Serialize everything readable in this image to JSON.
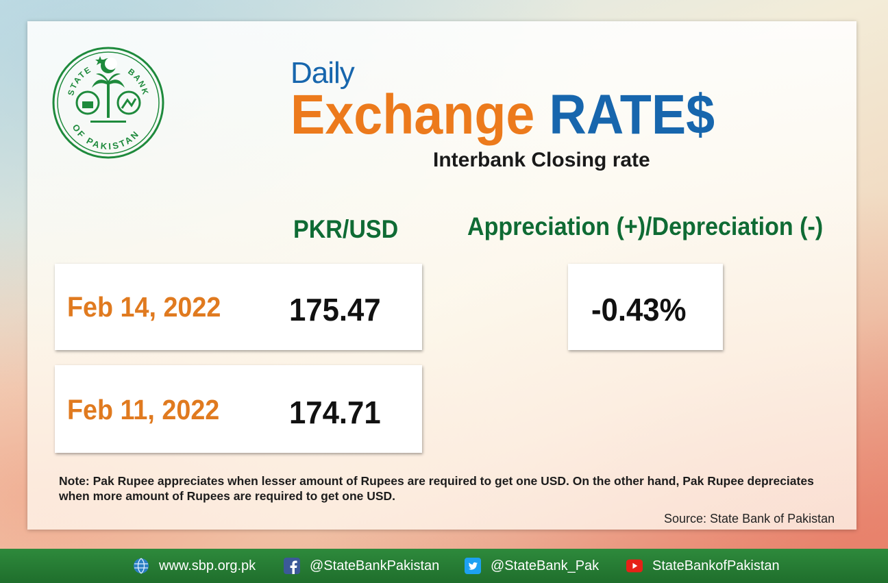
{
  "header": {
    "daily": "Daily",
    "title_word1": "Exchange",
    "title_word2": "RATE$",
    "subtitle": "Interbank Closing rate"
  },
  "logo": {
    "text_top_left": "STATE",
    "text_top_right": "BANK",
    "text_bottom": "OF PAKISTAN"
  },
  "columns": {
    "rate": "PKR/USD",
    "change": "Appreciation (+)/Depreciation (-)"
  },
  "rates": [
    {
      "date": "Feb 14, 2022",
      "value": "175.47"
    },
    {
      "date": "Feb 11, 2022",
      "value": "174.71"
    }
  ],
  "change_value": "-0.43%",
  "note": "Note: Pak Rupee appreciates when lesser amount of Rupees are required to get one USD.  On the other hand, Pak Rupee depreciates when more amount of Rupees are required to get one USD.",
  "source": "Source: State Bank of Pakistan",
  "footer": {
    "website": "www.sbp.org.pk",
    "facebook": "@StateBankPakistan",
    "twitter": "@StateBank_Pak",
    "youtube": "StateBankofPakistan"
  },
  "colors": {
    "orange": "#ec7a1c",
    "blue": "#1766ad",
    "green": "#0f6b34",
    "footer_green": "#2e8a3c"
  },
  "icons": [
    "globe-icon",
    "facebook-icon",
    "twitter-icon",
    "youtube-icon"
  ]
}
